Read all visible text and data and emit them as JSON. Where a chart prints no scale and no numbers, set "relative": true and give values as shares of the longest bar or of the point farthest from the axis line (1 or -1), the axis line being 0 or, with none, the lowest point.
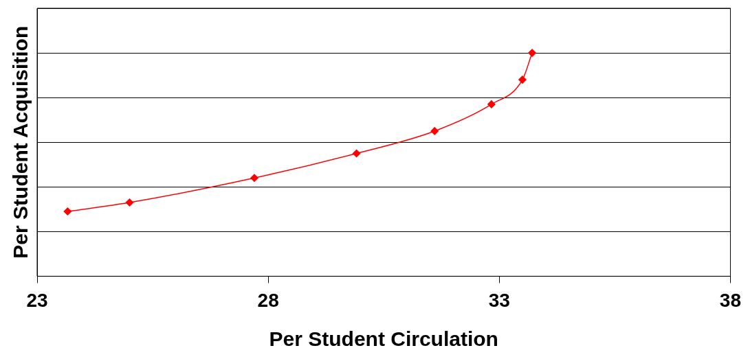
{
  "chart_data": {
    "type": "line",
    "xlabel": "Per Student Circulation",
    "ylabel": "Per Student Acquisition",
    "relative": true,
    "xlim": [
      23,
      38
    ],
    "xticks": [
      23,
      28,
      33,
      38
    ],
    "grid": "y",
    "legend": false,
    "marker": "diamond",
    "line_style": "solid",
    "series": [
      {
        "color": "#ff0000",
        "x": [
          23.66,
          25.0,
          27.7,
          29.91,
          31.6,
          32.83,
          33.5,
          33.71
        ],
        "values": [
          0.29,
          0.33,
          0.44,
          0.55,
          0.65,
          0.77,
          0.88,
          1.0
        ]
      }
    ]
  }
}
